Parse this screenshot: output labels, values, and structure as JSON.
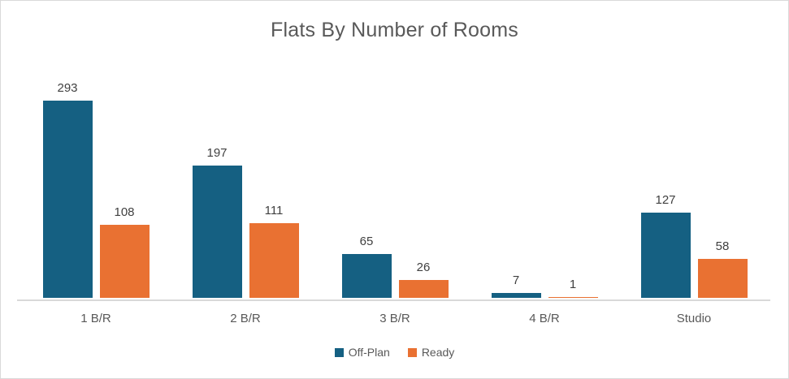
{
  "chart": {
    "title": "Flats By Number of Rooms",
    "colors": {
      "off_plan": "#156082",
      "ready": "#E97132",
      "axis_line": "#D9D9D9",
      "border": "#D9D9D9",
      "title_text": "#595959",
      "data_label_text": "#404040",
      "category_text": "#595959"
    }
  },
  "chart_data": {
    "type": "bar",
    "title": "Flats By Number of Rooms",
    "categories": [
      "1 B/R",
      "2 B/R",
      "3 B/R",
      "4 B/R",
      "Studio"
    ],
    "series": [
      {
        "name": "Off-Plan",
        "color": "#156082",
        "values": [
          293,
          197,
          65,
          7,
          127
        ]
      },
      {
        "name": "Ready",
        "color": "#E97132",
        "values": [
          108,
          111,
          26,
          1,
          58
        ]
      }
    ],
    "xlabel": "",
    "ylabel": "",
    "ylim": [
      0,
      300
    ],
    "grid": false,
    "y_axis_visible": false,
    "data_labels": true,
    "legend_position": "bottom"
  }
}
